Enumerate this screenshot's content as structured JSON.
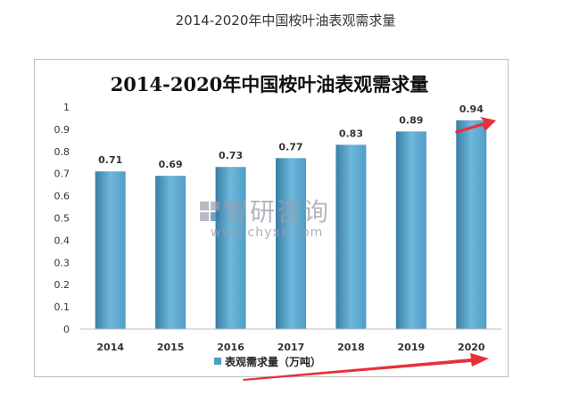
{
  "page_title": "2014-2020年中国桉叶油表观需求量",
  "watermark": {
    "name": "智研咨询",
    "url": "www.chyxx.com"
  },
  "colors": {
    "bar": "#4f9ec6",
    "bar_light": "#6fb7dc",
    "bar_dark": "#3a7ea6",
    "arrow": "#e8303a"
  },
  "chart_data": {
    "type": "bar",
    "title": "2014-2020年中国桉叶油表观需求量",
    "categories": [
      "2014",
      "2015",
      "2016",
      "2017",
      "2018",
      "2019",
      "2020"
    ],
    "series": [
      {
        "name": "表观需求量（万吨）",
        "values": [
          0.71,
          0.69,
          0.73,
          0.77,
          0.83,
          0.89,
          0.94
        ]
      }
    ],
    "data_labels": [
      "0.71",
      "0.69",
      "0.73",
      "0.77",
      "0.83",
      "0.89",
      "0.94"
    ],
    "yticks": [
      "0",
      "0.1",
      "0.2",
      "0.3",
      "0.4",
      "0.5",
      "0.6",
      "0.7",
      "0.8",
      "0.9",
      "1"
    ],
    "ylim": [
      0,
      1
    ],
    "grid": false,
    "legend": "bottom"
  }
}
